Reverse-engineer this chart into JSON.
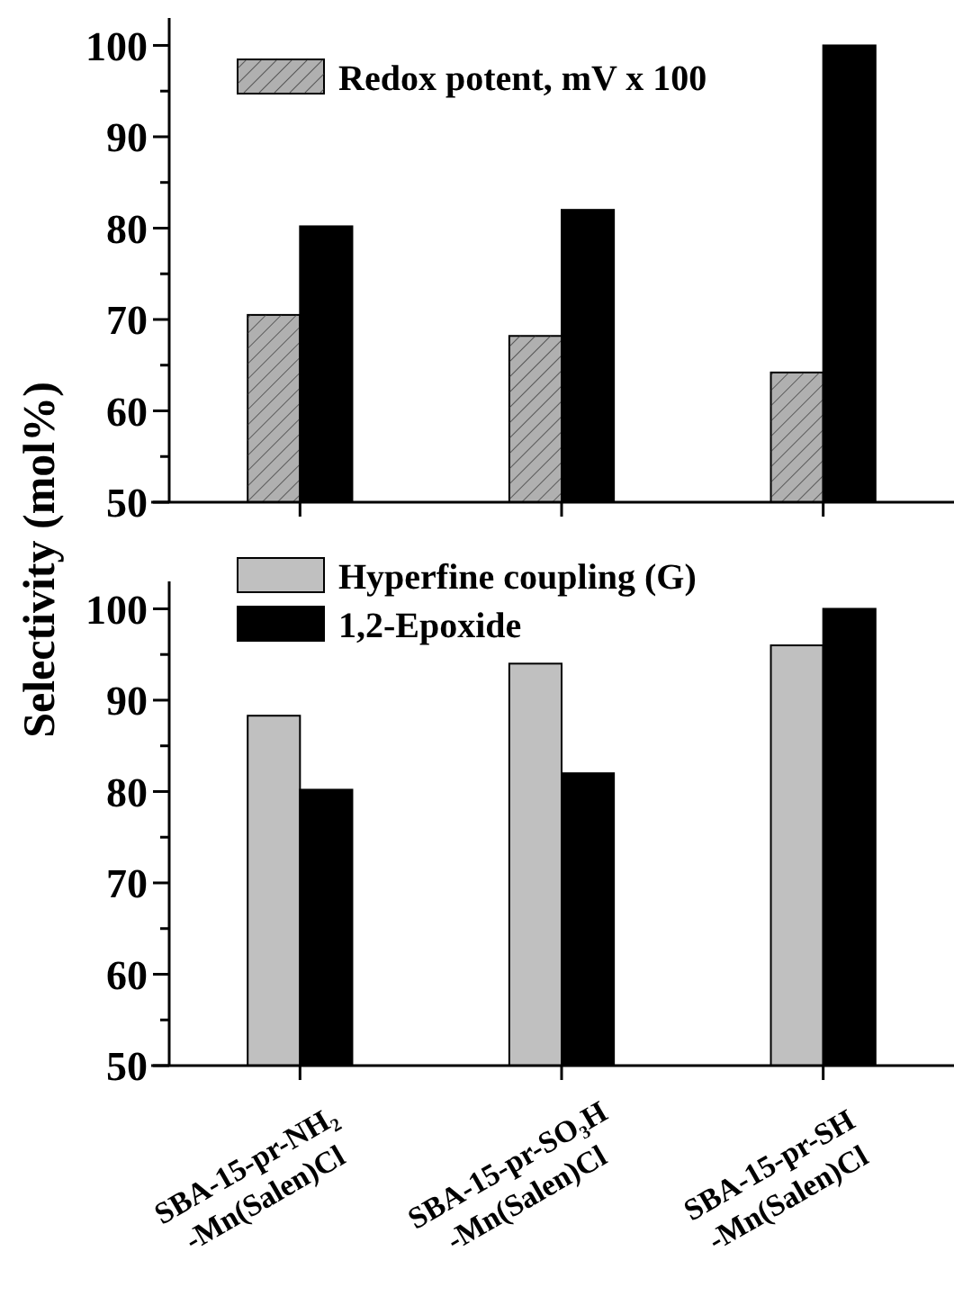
{
  "chart_data": [
    {
      "type": "bar",
      "categories": [
        null,
        null,
        null
      ],
      "series": [
        {
          "name": "Redox potent, mV x 100",
          "color": "#b0b0b0",
          "values": [
            70.5,
            68.2,
            64.2
          ]
        },
        {
          "color": "#000000",
          "values": [
            80.2,
            82.0,
            100
          ]
        }
      ],
      "ylim": [
        50,
        103
      ],
      "yticks": [
        50,
        {
          "value": 55,
          "label": null
        },
        60,
        {
          "value": 65,
          "label": null
        },
        70,
        {
          "value": 75,
          "label": null
        },
        80,
        {
          "value": 85,
          "label": null
        },
        90,
        {
          "value": 95,
          "label": null
        },
        100
      ],
      "legend": "top left"
    },
    {
      "type": "bar",
      "categories": [
        "SBA-15-pr-NH₂\n-Mn(Salen)Cl",
        "SBA-15-pr-SO₃H\n-Mn(Salen)Cl",
        "SBA-15-pr-SH\n-Mn(Salen)Cl"
      ],
      "ylabel": "Selectivity (mol%)",
      "series": [
        {
          "name": "Hyperfine coupling (G)",
          "color": "#c0c0c0",
          "values": [
            88.3,
            94.0,
            96.0
          ]
        },
        {
          "name": "1,2-Epoxide",
          "color": "#000000",
          "values": [
            80.2,
            82.0,
            100
          ]
        }
      ],
      "ylim": [
        50,
        103
      ],
      "yticks": [
        50,
        {
          "value": 55,
          "label": null
        },
        60,
        {
          "value": 65,
          "label": null
        },
        70,
        {
          "value": 75,
          "label": null
        },
        80,
        {
          "value": 85,
          "label": null
        },
        90,
        {
          "value": 95,
          "label": null
        },
        100
      ],
      "legend": "top left"
    }
  ]
}
